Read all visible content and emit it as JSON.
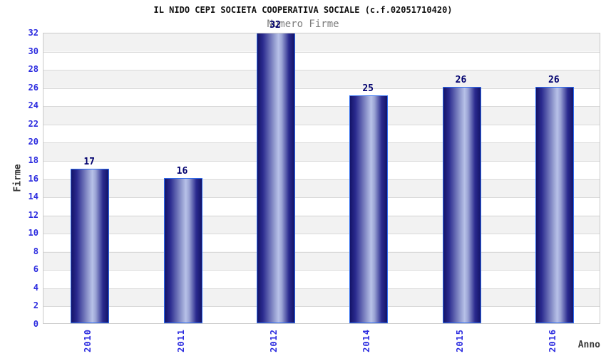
{
  "chart_data": {
    "type": "bar",
    "title": "IL NIDO CEPI SOCIETA COOPERATIVA SOCIALE (c.f.02051710420)",
    "subtitle": "Numero Firme",
    "xlabel": "Anno",
    "ylabel": "Firme",
    "categories": [
      "2010",
      "2011",
      "2012",
      "2014",
      "2015",
      "2016"
    ],
    "values": [
      17,
      16,
      32,
      25,
      26,
      26
    ],
    "ylim": [
      0,
      32
    ],
    "ytick_step": 2,
    "yticks": [
      0,
      2,
      4,
      6,
      8,
      10,
      12,
      14,
      16,
      18,
      20,
      22,
      24,
      26,
      28,
      30,
      32
    ],
    "grid": "horizontal, alternating gray/white bands every 2 units",
    "legend": "none",
    "value_labels": "above each bar"
  },
  "colors": {
    "title_text": "#111111",
    "subtitle_text": "#7d7d7d",
    "axis_tick_text": "#2b2bdf",
    "axis_label_text": "#3a3a3a",
    "value_label": "#00006e",
    "bar_dark": "#131368",
    "bar_mid": "#2b2b8f",
    "bar_light": "#9aa3d4",
    "bar_highlight": "#b8c1e8",
    "bar_outline": "#2e6cf0",
    "stripe_gray": "#f2f2f2",
    "stripe_white": "#ffffff",
    "grid_line": "#d9d9d9",
    "plot_border": "#c9c9c9"
  }
}
